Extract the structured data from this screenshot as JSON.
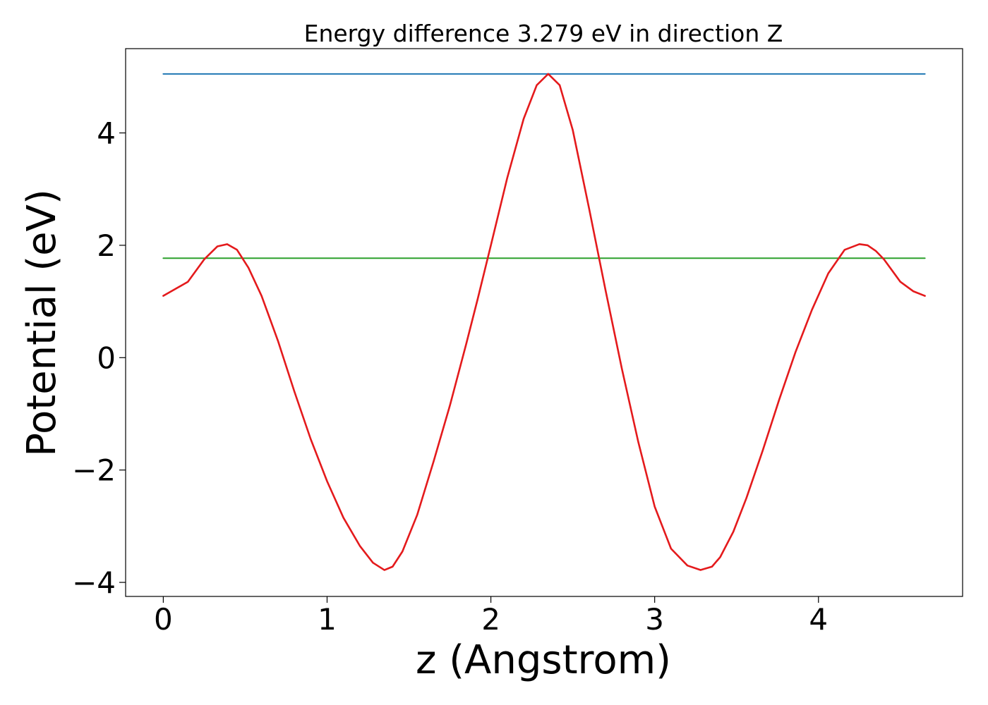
{
  "chart_data": {
    "type": "line",
    "title": "Energy difference 3.279 eV in direction Z",
    "xlabel": "z (Angstrom)",
    "ylabel": "Potential (eV)",
    "xlim": [
      -0.23,
      4.88
    ],
    "ylim": [
      -4.25,
      5.5
    ],
    "xticks": [
      0,
      1,
      2,
      3,
      4
    ],
    "xtick_labels": [
      "0",
      "1",
      "2",
      "3",
      "4"
    ],
    "yticks": [
      -4,
      -2,
      0,
      2,
      4
    ],
    "ytick_labels": [
      "−4",
      "−2",
      "0",
      "2",
      "4"
    ],
    "grid": false,
    "legend": "none",
    "colors": {
      "potential": "#e41a1c",
      "upper_level": "#1f77b4",
      "lower_level": "#2ca02c"
    },
    "series": [
      {
        "key": "potential",
        "x": [
          0,
          0.15,
          0.25,
          0.33,
          0.39,
          0.45,
          0.52,
          0.6,
          0.7,
          0.8,
          0.9,
          1.0,
          1.1,
          1.2,
          1.28,
          1.35,
          1.4,
          1.46,
          1.55,
          1.65,
          1.75,
          1.85,
          1.92,
          2.0,
          2.1,
          2.2,
          2.28,
          2.35,
          2.42,
          2.5,
          2.6,
          2.7,
          2.8,
          2.9,
          3.0,
          3.1,
          3.2,
          3.28,
          3.35,
          3.4,
          3.48,
          3.56,
          3.66,
          3.76,
          3.86,
          3.96,
          4.06,
          4.16,
          4.25,
          4.3,
          4.35,
          4.4,
          4.5,
          4.58,
          4.65
        ],
        "y": [
          1.1,
          1.35,
          1.75,
          1.98,
          2.02,
          1.92,
          1.6,
          1.1,
          0.3,
          -0.6,
          -1.45,
          -2.2,
          -2.85,
          -3.35,
          -3.65,
          -3.78,
          -3.72,
          -3.45,
          -2.8,
          -1.85,
          -0.85,
          0.25,
          1.05,
          2.0,
          3.2,
          4.25,
          4.85,
          5.05,
          4.85,
          4.05,
          2.65,
          1.2,
          -0.2,
          -1.5,
          -2.65,
          -3.4,
          -3.7,
          -3.78,
          -3.72,
          -3.55,
          -3.1,
          -2.5,
          -1.65,
          -0.75,
          0.1,
          0.85,
          1.5,
          1.92,
          2.02,
          2.0,
          1.9,
          1.75,
          1.35,
          1.18,
          1.1
        ]
      },
      {
        "key": "upper_level",
        "x": [
          0,
          4.65
        ],
        "y": [
          5.05,
          5.05
        ]
      },
      {
        "key": "lower_level",
        "x": [
          0,
          4.65
        ],
        "y": [
          1.77,
          1.77
        ]
      }
    ]
  }
}
